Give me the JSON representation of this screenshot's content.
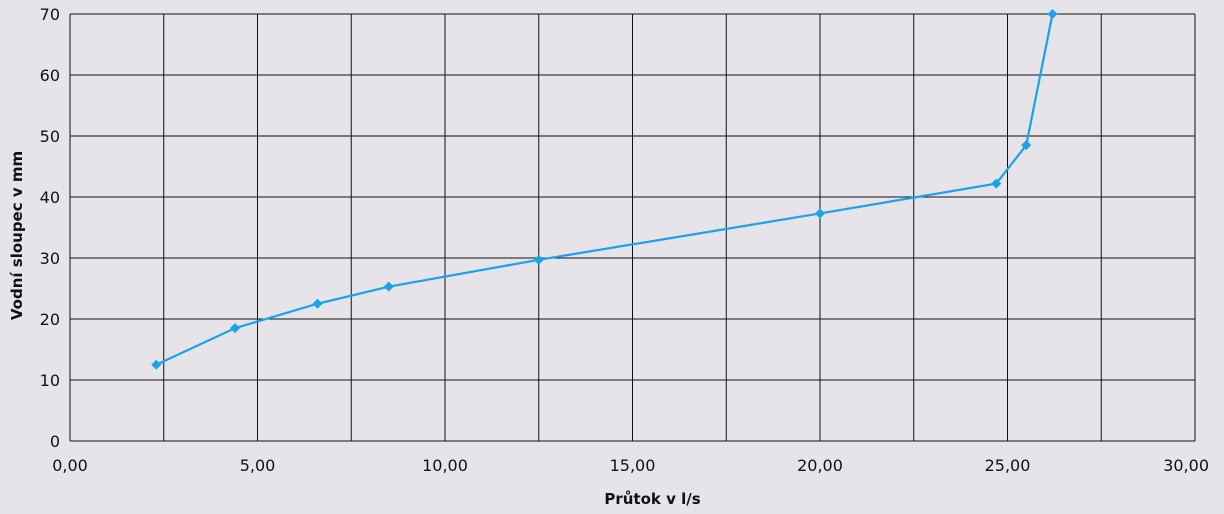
{
  "chart_data": {
    "type": "line",
    "title": "",
    "xlabel": "Průtok v l/s",
    "ylabel": "Vodní sloupec v mm",
    "xlim": [
      0,
      30
    ],
    "ylim": [
      0,
      70
    ],
    "x_ticks": [
      "0,00",
      "5,00",
      "10,00",
      "15,00",
      "20,00",
      "25,00",
      "30,00"
    ],
    "x_tick_values": [
      0,
      5,
      10,
      15,
      20,
      25,
      30
    ],
    "y_ticks": [
      "0",
      "10",
      "20",
      "30",
      "40",
      "50",
      "60",
      "70"
    ],
    "y_tick_values": [
      0,
      10,
      20,
      30,
      40,
      50,
      60,
      70
    ],
    "x_gridlines": [
      0,
      2.5,
      5,
      7.5,
      10,
      12.5,
      15,
      17.5,
      20,
      22.5,
      25,
      27.5,
      30
    ],
    "grid": true,
    "legend": "none",
    "series": [
      {
        "color": "#1aa3e8",
        "marker": "diamond",
        "x": [
          2.3,
          4.4,
          6.6,
          8.5,
          12.5,
          20.0,
          24.7,
          25.5,
          26.2
        ],
        "y": [
          12.5,
          18.5,
          22.5,
          25.3,
          29.7,
          37.3,
          42.2,
          48.5,
          70.0
        ]
      }
    ]
  }
}
